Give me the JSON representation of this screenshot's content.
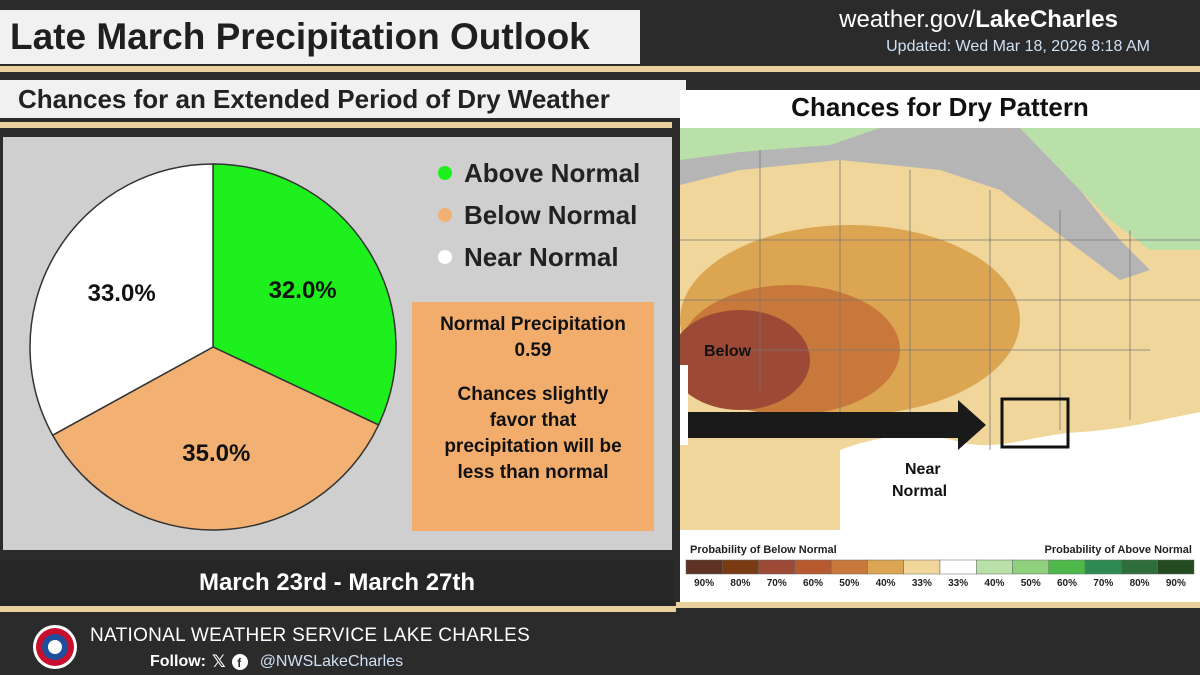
{
  "header": {
    "title": "Late March Precipitation Outlook",
    "site_prefix": "weather.gov/",
    "site_bold": "LakeCharles",
    "updated": "Updated: Wed Mar 18, 2026 8:18 AM"
  },
  "subtitle": "Chances for an Extended Period of Dry Weather",
  "chart_data": {
    "type": "pie",
    "slices": [
      {
        "label": "Above Normal",
        "value": 32.0,
        "display": "32.0%",
        "color": "#1ef01e"
      },
      {
        "label": "Below Normal",
        "value": 35.0,
        "display": "35.0%",
        "color": "#f2b173"
      },
      {
        "label": "Near Normal",
        "value": 33.0,
        "display": "33.0%",
        "color": "#ffffff"
      }
    ]
  },
  "info_box": {
    "heading": "Normal Precipitation",
    "value": "0.59",
    "line1": "Chances slightly",
    "line2": "favor that",
    "line3": "precipitation will be",
    "line4": "less than normal"
  },
  "dates": "March 23rd - March 27th",
  "map": {
    "title": "Chances for Dry Pattern",
    "label_below": "Below",
    "label_near_1": "Near",
    "label_near_2": "Normal",
    "scale_left": "Probability of Below Normal",
    "scale_right": "Probability of Above Normal",
    "scale": [
      {
        "pct": "90%",
        "color": "#5e3324"
      },
      {
        "pct": "80%",
        "color": "#7a3b12"
      },
      {
        "pct": "70%",
        "color": "#9c4a35"
      },
      {
        "pct": "60%",
        "color": "#b85a2f"
      },
      {
        "pct": "50%",
        "color": "#c8783a"
      },
      {
        "pct": "40%",
        "color": "#dca552"
      },
      {
        "pct": "33%",
        "color": "#f0d69a"
      },
      {
        "pct": "33%",
        "color": "#ffffff"
      },
      {
        "pct": "40%",
        "color": "#b8e0a8"
      },
      {
        "pct": "50%",
        "color": "#8fd07c"
      },
      {
        "pct": "60%",
        "color": "#4fb84a"
      },
      {
        "pct": "70%",
        "color": "#2d8a52"
      },
      {
        "pct": "80%",
        "color": "#2f6e3a"
      },
      {
        "pct": "90%",
        "color": "#244a22"
      }
    ]
  },
  "footer": {
    "org": "NATIONAL WEATHER SERVICE LAKE CHARLES",
    "follow": "Follow:",
    "handle": "@NWSLakeCharles"
  },
  "colors": {
    "accent_tan": "#e8d19c",
    "below_normal": "#f2b173",
    "above_normal": "#1ef01e"
  }
}
